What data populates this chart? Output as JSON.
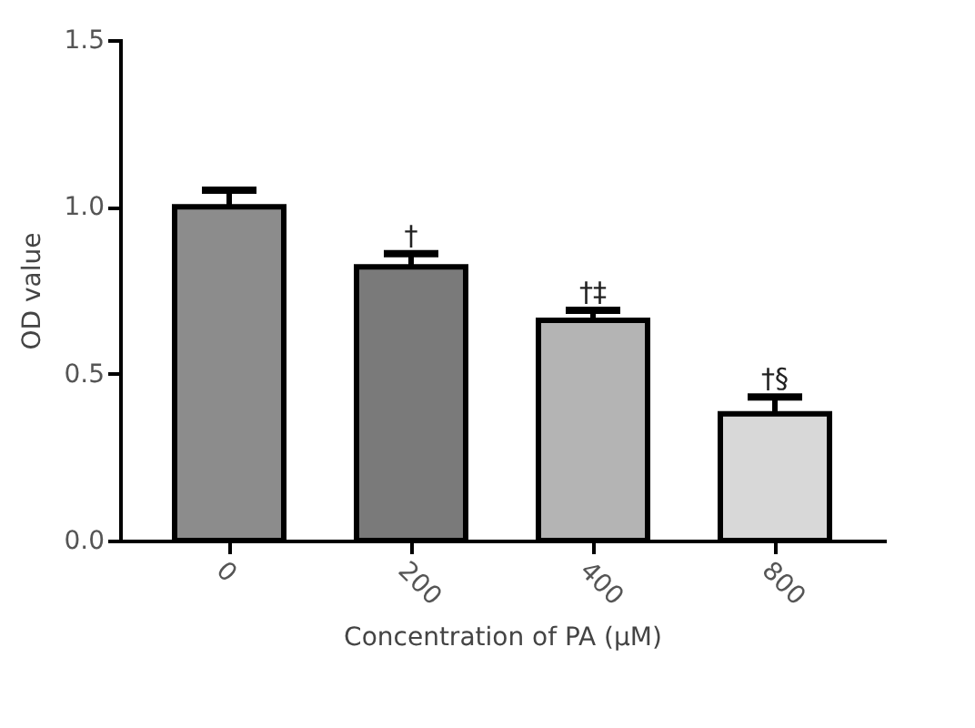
{
  "chart_data": {
    "type": "bar",
    "xlabel": "Concentration of PA (μM)",
    "ylabel": "OD value",
    "categories": [
      "0",
      "200",
      "400",
      "800"
    ],
    "values": [
      1.0,
      0.82,
      0.66,
      0.38
    ],
    "errors": [
      0.05,
      0.04,
      0.03,
      0.05
    ],
    "colors": [
      "#8c8c8c",
      "#7a7a7a",
      "#b4b4b4",
      "#d8d8d8"
    ],
    "ylim": [
      0,
      1.5
    ],
    "yticks": [
      {
        "value": 0,
        "label": "0.0"
      },
      {
        "value": 0.5,
        "label": "0.5"
      },
      {
        "value": 1,
        "label": "1.0"
      },
      {
        "value": 1.5,
        "label": "1.5"
      }
    ],
    "annotations": [
      {
        "text": "†",
        "x": "200",
        "y": 0.86
      },
      {
        "text": "†‡",
        "x": "400",
        "y": 0.69
      },
      {
        "text": "†§",
        "x": "800",
        "y": 0.43
      }
    ],
    "grid": false
  }
}
